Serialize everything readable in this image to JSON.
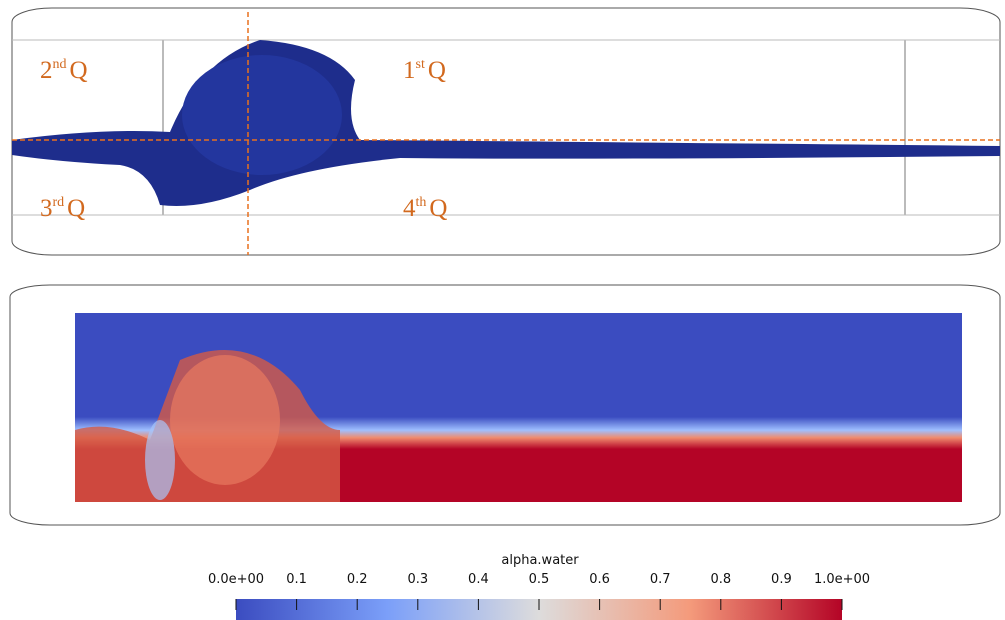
{
  "panels": {
    "quadrants": [
      {
        "num": "2",
        "sup": "nd",
        "letter": "Q"
      },
      {
        "num": "1",
        "sup": "st",
        "letter": "Q"
      },
      {
        "num": "3",
        "sup": "rd",
        "letter": "Q"
      },
      {
        "num": "4",
        "sup": "th",
        "letter": "Q"
      }
    ]
  },
  "colorbar": {
    "title": "alpha.water",
    "range": [
      0,
      1
    ],
    "ticks": [
      {
        "value": 0,
        "label": "0.0e+00"
      },
      0.1,
      0.2,
      0.3,
      0.4,
      0.5,
      0.6,
      0.7,
      0.8,
      0.9,
      {
        "value": 1,
        "label": "1.0e+00"
      }
    ]
  }
}
